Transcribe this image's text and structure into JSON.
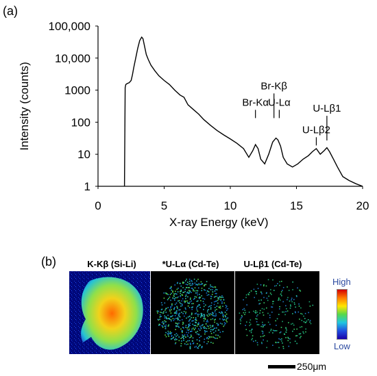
{
  "panel_a_label": "(a)",
  "panel_b_label": "(b)",
  "chart_data": {
    "type": "line",
    "xlabel": "X-ray Energy (keV)",
    "ylabel": "Intensity (counts)",
    "xlim": [
      0,
      20
    ],
    "ylim": [
      1,
      100000
    ],
    "yscale": "log",
    "x_ticks": [
      "0",
      "5",
      "10",
      "15",
      "20"
    ],
    "y_ticks": [
      "1",
      "10",
      "100",
      "1000",
      "10,000",
      "100,000"
    ],
    "grid": false,
    "series": [
      {
        "color": "#000000",
        "x": [
          2.0,
          2.05,
          2.1,
          2.2,
          2.35,
          2.5,
          2.6,
          2.7,
          2.85,
          3.0,
          3.15,
          3.3,
          3.4,
          3.5,
          3.65,
          3.8,
          4.0,
          4.3,
          4.6,
          5.0,
          5.4,
          5.8,
          6.2,
          6.5,
          6.8,
          7.2,
          7.6,
          8.0,
          8.5,
          9.0,
          9.5,
          10.0,
          10.5,
          11.0,
          11.4,
          11.7,
          11.9,
          12.1,
          12.3,
          12.6,
          12.9,
          13.2,
          13.45,
          13.6,
          13.8,
          14.0,
          14.3,
          14.7,
          15.1,
          15.5,
          15.9,
          16.2,
          16.5,
          16.8,
          17.1,
          17.3,
          17.5,
          17.8,
          18.1,
          18.5,
          19.0,
          19.5,
          20.0
        ],
        "y": [
          1,
          1200,
          1500,
          1600,
          1700,
          2000,
          3000,
          5000,
          10000,
          20000,
          35000,
          45000,
          40000,
          25000,
          13000,
          9000,
          6000,
          4000,
          2800,
          2000,
          1500,
          1000,
          700,
          600,
          350,
          250,
          180,
          120,
          80,
          55,
          40,
          30,
          22,
          15,
          8,
          13,
          20,
          15,
          7,
          5,
          10,
          24,
          32,
          28,
          18,
          8,
          5,
          4,
          5,
          7,
          9,
          12,
          15,
          10,
          13,
          16,
          12,
          7,
          4,
          2,
          1.5,
          1.2,
          1
        ]
      }
    ],
    "annotations": [
      {
        "text": "Br-Kα",
        "x": 11.9,
        "y": 100,
        "label_level": 1
      },
      {
        "text": "Br-Kβ",
        "x": 13.3,
        "y": 100,
        "label_level": 2
      },
      {
        "text": "U-Lα",
        "x": 13.7,
        "y": 100,
        "label_level": 1
      },
      {
        "text": "U-Lβ2",
        "x": 16.5,
        "y": 14,
        "label_level": 1
      },
      {
        "text": "U-Lβ1",
        "x": 17.3,
        "y": 20,
        "label_level": 2
      }
    ]
  },
  "maps": {
    "titles": [
      "K-Kβ (Si-Li)",
      "*U-Lα (Cd-Te)",
      "U-Lβ1 (Cd-Te)"
    ],
    "colorbar_high": "High",
    "colorbar_low": "Low",
    "scale_bar_label": "250μm"
  }
}
